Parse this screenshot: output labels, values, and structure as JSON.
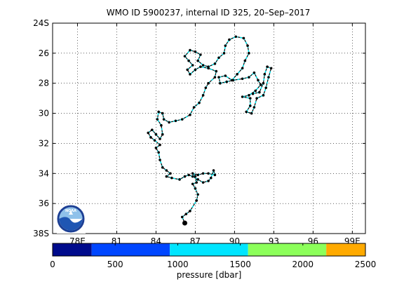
{
  "chart_data": {
    "type": "scatter",
    "title": "WMO ID 5900237, internal ID 325, 20–Sep–2017",
    "x_ticks": [
      "78E",
      "81",
      "84",
      "87",
      "90",
      "93",
      "96",
      "99E"
    ],
    "x_tick_values": [
      78,
      81,
      84,
      87,
      90,
      93,
      96,
      99
    ],
    "y_ticks": [
      "24S",
      "26",
      "28",
      "30",
      "32",
      "34",
      "36",
      "38S"
    ],
    "y_tick_values": [
      24,
      26,
      28,
      30,
      32,
      34,
      36,
      38
    ],
    "xlim": [
      76.1,
      100.0
    ],
    "ylim": [
      24,
      38
    ],
    "grid": true,
    "track": [
      [
        86.2,
        37.3
      ],
      [
        86.0,
        36.9
      ],
      [
        86.3,
        36.7
      ],
      [
        86.6,
        36.5
      ],
      [
        87.1,
        35.8
      ],
      [
        87.2,
        35.4
      ],
      [
        87.0,
        35.0
      ],
      [
        86.8,
        34.7
      ],
      [
        87.1,
        34.6
      ],
      [
        87.0,
        34.2
      ],
      [
        86.8,
        34.0
      ],
      [
        87.2,
        34.1
      ],
      [
        87.6,
        34.0
      ],
      [
        88.0,
        34.0
      ],
      [
        88.5,
        34.1
      ],
      [
        88.4,
        33.8
      ],
      [
        88.2,
        34.3
      ],
      [
        88.0,
        34.5
      ],
      [
        87.6,
        34.6
      ],
      [
        87.2,
        34.4
      ],
      [
        86.8,
        34.2
      ],
      [
        86.5,
        34.1
      ],
      [
        86.2,
        34.2
      ],
      [
        85.8,
        34.4
      ],
      [
        85.2,
        34.3
      ],
      [
        84.8,
        34.2
      ],
      [
        85.1,
        34.0
      ],
      [
        84.8,
        33.8
      ],
      [
        84.5,
        33.6
      ],
      [
        84.3,
        33.1
      ],
      [
        84.2,
        32.6
      ],
      [
        84.0,
        32.3
      ],
      [
        84.3,
        32.1
      ],
      [
        83.9,
        31.8
      ],
      [
        83.6,
        31.6
      ],
      [
        83.4,
        31.3
      ],
      [
        83.7,
        31.1
      ],
      [
        84.0,
        31.4
      ],
      [
        84.3,
        31.7
      ],
      [
        84.5,
        31.4
      ],
      [
        84.4,
        30.8
      ],
      [
        84.1,
        30.4
      ],
      [
        84.2,
        29.9
      ],
      [
        84.5,
        30.0
      ],
      [
        84.6,
        30.4
      ],
      [
        85.0,
        30.6
      ],
      [
        85.5,
        30.5
      ],
      [
        86.0,
        30.4
      ],
      [
        86.6,
        30.1
      ],
      [
        86.9,
        29.6
      ],
      [
        87.3,
        29.3
      ],
      [
        87.6,
        28.8
      ],
      [
        87.8,
        28.3
      ],
      [
        88.0,
        28.0
      ],
      [
        88.5,
        27.6
      ],
      [
        88.6,
        27.2
      ],
      [
        88.0,
        27.0
      ],
      [
        87.4,
        26.9
      ],
      [
        87.0,
        27.1
      ],
      [
        86.6,
        27.4
      ],
      [
        86.4,
        27.1
      ],
      [
        86.8,
        26.8
      ],
      [
        86.5,
        26.5
      ],
      [
        86.2,
        26.2
      ],
      [
        86.6,
        25.8
      ],
      [
        87.0,
        25.9
      ],
      [
        87.4,
        26.1
      ],
      [
        87.2,
        26.5
      ],
      [
        87.6,
        26.8
      ],
      [
        88.0,
        26.9
      ],
      [
        88.5,
        26.7
      ],
      [
        88.8,
        26.3
      ],
      [
        89.2,
        26.0
      ],
      [
        89.3,
        25.5
      ],
      [
        89.6,
        25.1
      ],
      [
        90.1,
        24.9
      ],
      [
        90.7,
        25.0
      ],
      [
        91.0,
        25.5
      ],
      [
        91.1,
        26.0
      ],
      [
        90.8,
        26.5
      ],
      [
        90.6,
        27.0
      ],
      [
        90.2,
        27.4
      ],
      [
        89.8,
        27.8
      ],
      [
        89.3,
        27.5
      ],
      [
        88.8,
        27.6
      ],
      [
        88.9,
        28.0
      ],
      [
        89.4,
        27.9
      ],
      [
        89.9,
        27.8
      ],
      [
        90.6,
        27.7
      ],
      [
        91.1,
        27.6
      ],
      [
        91.5,
        27.3
      ],
      [
        91.8,
        27.8
      ],
      [
        92.0,
        28.1
      ],
      [
        91.6,
        28.5
      ],
      [
        91.1,
        28.8
      ],
      [
        90.6,
        28.9
      ],
      [
        91.2,
        29.0
      ],
      [
        91.2,
        29.5
      ],
      [
        90.9,
        29.9
      ],
      [
        91.3,
        30.0
      ],
      [
        91.5,
        29.6
      ],
      [
        91.7,
        29.0
      ],
      [
        92.2,
        28.8
      ],
      [
        92.4,
        28.3
      ],
      [
        92.6,
        27.6
      ],
      [
        92.8,
        27.0
      ],
      [
        92.5,
        26.9
      ],
      [
        92.3,
        27.4
      ],
      [
        92.2,
        28.0
      ],
      [
        91.9,
        28.6
      ],
      [
        91.4,
        28.7
      ]
    ],
    "track_colors": {
      "line": "#000000",
      "segment": "#00e5ee",
      "marker": "#000000"
    },
    "start_marker": {
      "x": 86.2,
      "y": 37.3
    },
    "colorbar": {
      "label": "pressure [dbar]",
      "ticks": [
        "0",
        "500",
        "1000",
        "1500",
        "2000",
        "2500"
      ],
      "tick_values": [
        0,
        500,
        1000,
        1500,
        2000,
        2500
      ],
      "min": 0,
      "max": 2500,
      "bands": [
        {
          "from": 0,
          "to": 312,
          "color": "#000b8c"
        },
        {
          "from": 312,
          "to": 937,
          "color": "#0046ff"
        },
        {
          "from": 937,
          "to": 1562,
          "color": "#00e5ff"
        },
        {
          "from": 1562,
          "to": 2187,
          "color": "#8cff5a"
        },
        {
          "from": 2187,
          "to": 2500,
          "color": "#ffaa00"
        }
      ]
    }
  },
  "logo": {
    "text": "NOAA",
    "colors": {
      "ring": "#1c3f94",
      "sky": "#8fc1ea",
      "wave": "#1f56b3"
    }
  }
}
